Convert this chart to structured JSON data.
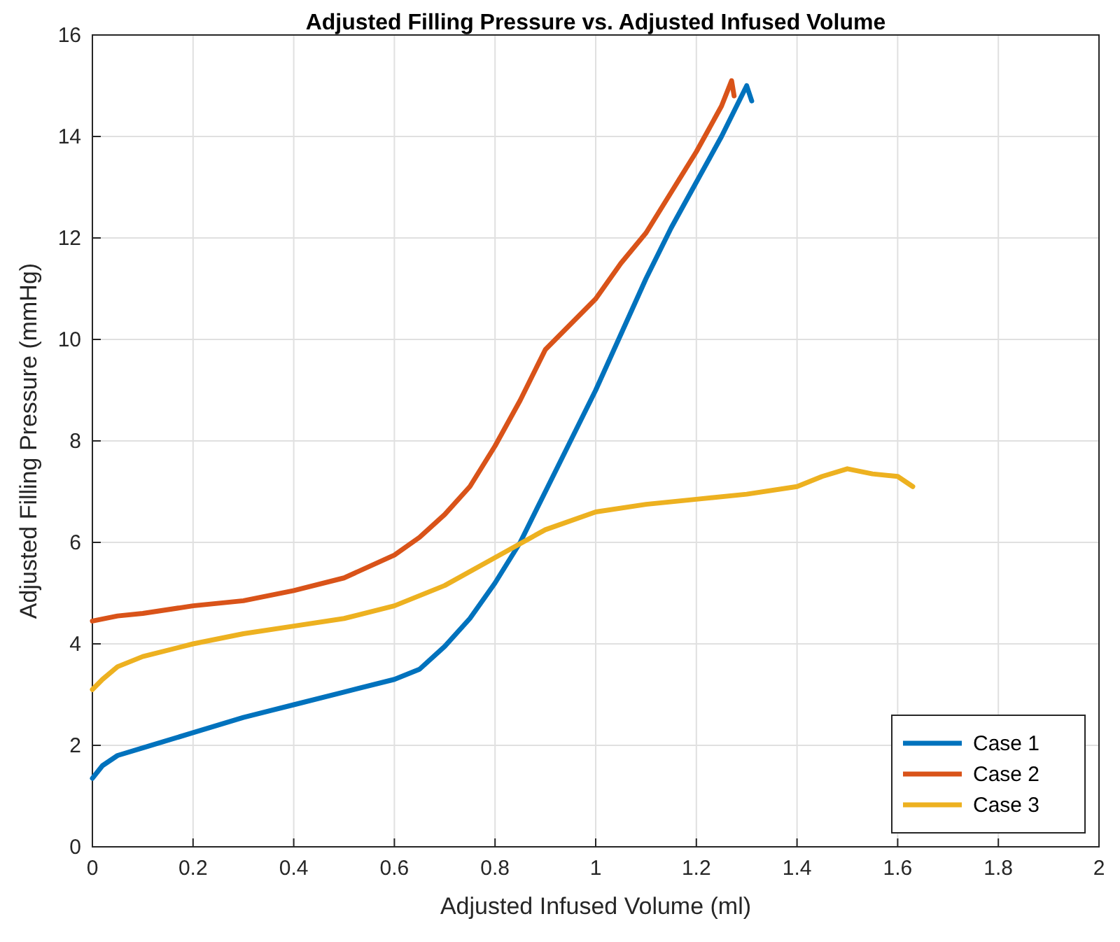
{
  "chart_data": {
    "type": "line",
    "title": "Adjusted Filling Pressure vs. Adjusted Infused Volume",
    "xlabel": "Adjusted Infused Volume (ml)",
    "ylabel": "Adjusted Filling Pressure (mmHg)",
    "xlim": [
      0,
      2
    ],
    "ylim": [
      0,
      16
    ],
    "xticks": [
      0,
      0.2,
      0.4,
      0.6,
      0.8,
      1,
      1.2,
      1.4,
      1.6,
      1.8,
      2
    ],
    "yticks": [
      0,
      2,
      4,
      6,
      8,
      10,
      12,
      14,
      16
    ],
    "grid": true,
    "legend": "bottom right",
    "line_style": "solid",
    "series": [
      {
        "name": "Case 1",
        "color": "#0072bd",
        "x": [
          0,
          0.02,
          0.05,
          0.1,
          0.2,
          0.3,
          0.4,
          0.5,
          0.6,
          0.65,
          0.7,
          0.75,
          0.8,
          0.85,
          0.9,
          0.95,
          1.0,
          1.05,
          1.1,
          1.15,
          1.2,
          1.25,
          1.3,
          1.31
        ],
        "values": [
          1.35,
          1.6,
          1.8,
          1.95,
          2.25,
          2.55,
          2.8,
          3.05,
          3.3,
          3.5,
          3.95,
          4.5,
          5.2,
          6.0,
          7.0,
          8.0,
          9.0,
          10.1,
          11.2,
          12.2,
          13.1,
          14.0,
          15.0,
          14.7
        ]
      },
      {
        "name": "Case 2",
        "color": "#d95319",
        "x": [
          0,
          0.05,
          0.1,
          0.2,
          0.3,
          0.4,
          0.5,
          0.6,
          0.65,
          0.7,
          0.75,
          0.8,
          0.85,
          0.9,
          0.95,
          1.0,
          1.05,
          1.1,
          1.15,
          1.2,
          1.25,
          1.27,
          1.275
        ],
        "values": [
          4.45,
          4.55,
          4.6,
          4.75,
          4.85,
          5.05,
          5.3,
          5.75,
          6.1,
          6.55,
          7.1,
          7.9,
          8.8,
          9.8,
          10.3,
          10.8,
          11.5,
          12.1,
          12.9,
          13.7,
          14.6,
          15.1,
          14.8
        ]
      },
      {
        "name": "Case 3",
        "color": "#edb120",
        "x": [
          0,
          0.02,
          0.05,
          0.1,
          0.2,
          0.3,
          0.4,
          0.5,
          0.6,
          0.7,
          0.8,
          0.9,
          1.0,
          1.1,
          1.2,
          1.3,
          1.4,
          1.45,
          1.5,
          1.55,
          1.6,
          1.63
        ],
        "values": [
          3.1,
          3.3,
          3.55,
          3.75,
          4.0,
          4.2,
          4.35,
          4.5,
          4.75,
          5.15,
          5.7,
          6.25,
          6.6,
          6.75,
          6.85,
          6.95,
          7.1,
          7.3,
          7.45,
          7.35,
          7.3,
          7.1
        ]
      }
    ]
  }
}
